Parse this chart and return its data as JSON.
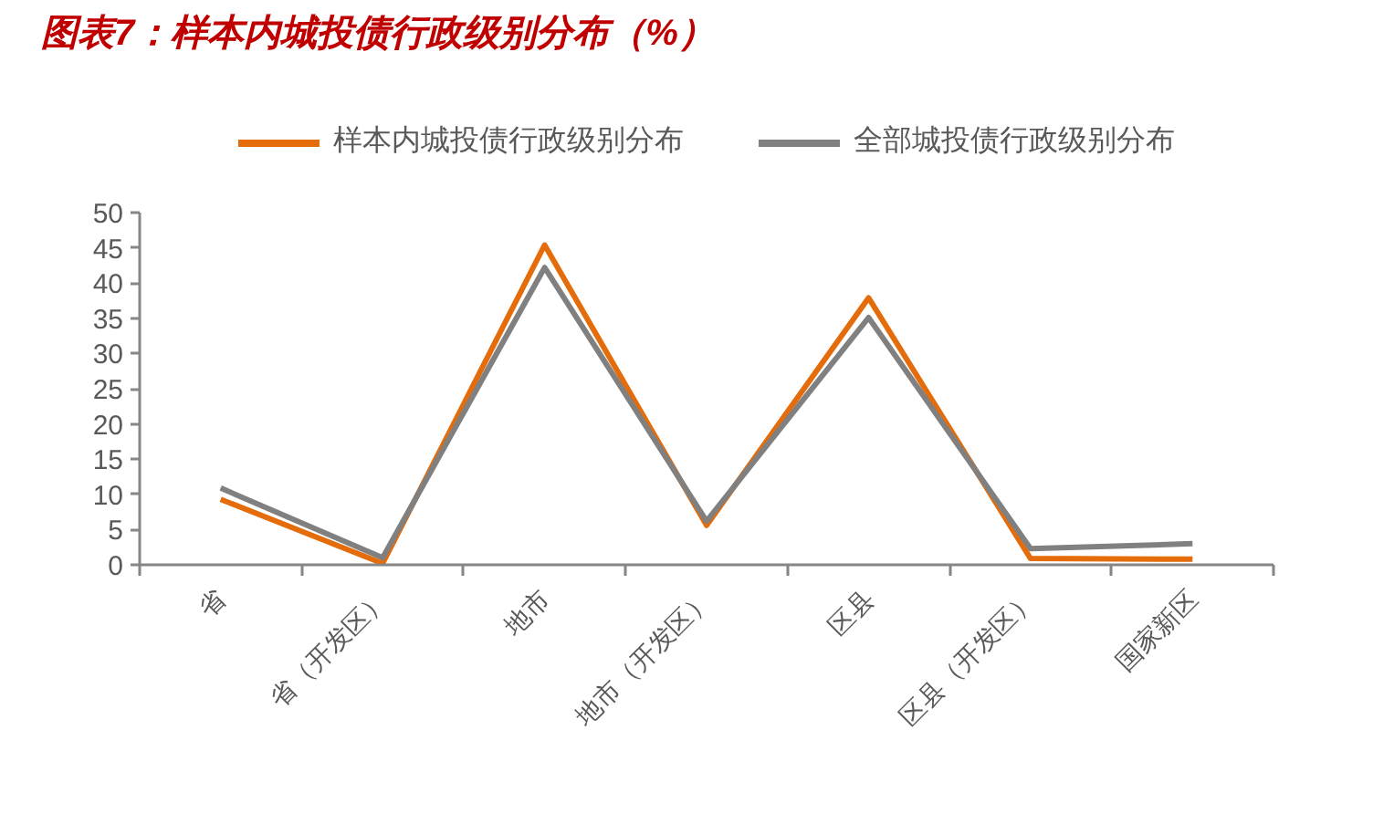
{
  "chart_data": {
    "type": "line",
    "title": "图表7：样本内城投债行政级别分布（%）",
    "categories": [
      "省",
      "省（开发区）",
      "地市",
      "地市（开发区）",
      "区县",
      "区县（开发区）",
      "国家新区"
    ],
    "series": [
      {
        "name": "样本内城投债行政级别分布",
        "color": "#e46c0a",
        "values": [
          9.3,
          0.2,
          45.4,
          5.6,
          37.9,
          0.9,
          0.8
        ]
      },
      {
        "name": "全部城投债行政级别分布",
        "color": "#808080",
        "values": [
          10.9,
          1.0,
          42.2,
          6.2,
          35.1,
          2.3,
          3.0
        ]
      }
    ],
    "ylim": [
      0,
      50
    ],
    "yticks": [
      0,
      5,
      10,
      15,
      20,
      25,
      30,
      35,
      40,
      45,
      50
    ],
    "grid": false,
    "legend": "top",
    "marker": "none",
    "line_style": "solid"
  }
}
